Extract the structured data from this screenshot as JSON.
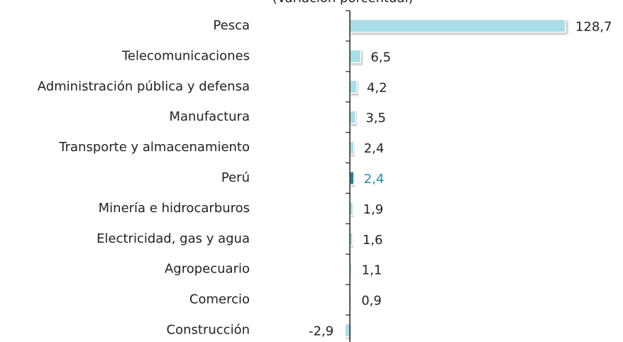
{
  "chart_data": {
    "type": "barh",
    "subtitle": "(Variación porcentual)",
    "categories": [
      "Pesca",
      "Telecomunicaciones",
      "Administración pública y defensa",
      "Manufactura",
      "Transporte y almacenamiento",
      "Perú",
      "Minería e hidrocarburos",
      "Electricidad, gas y agua",
      "Agropecuario",
      "Comercio",
      "Construcción"
    ],
    "values": [
      128.7,
      6.5,
      4.2,
      3.5,
      2.4,
      2.4,
      1.9,
      1.6,
      1.1,
      0.9,
      -2.9
    ],
    "value_labels": [
      "128,7",
      "6,5",
      "4,2",
      "3,5",
      "2,4",
      "2,4",
      "1,9",
      "1,6",
      "1,1",
      "0,9",
      "-2,9"
    ],
    "colors": [
      "#a9dde7",
      "#a9dde7",
      "#a9dde7",
      "#a9dde7",
      "#a9dde7",
      "#2e7f8d",
      "#a9dde7",
      "#a9dde7",
      "#a9dde7",
      "#a9dde7",
      "#a9dde7"
    ],
    "value_label_colors": [
      "#222222",
      "#222222",
      "#222222",
      "#222222",
      "#222222",
      "#2b8a9a",
      "#222222",
      "#222222",
      "#222222",
      "#222222",
      "#222222"
    ],
    "xlim": [
      -3,
      130
    ]
  }
}
